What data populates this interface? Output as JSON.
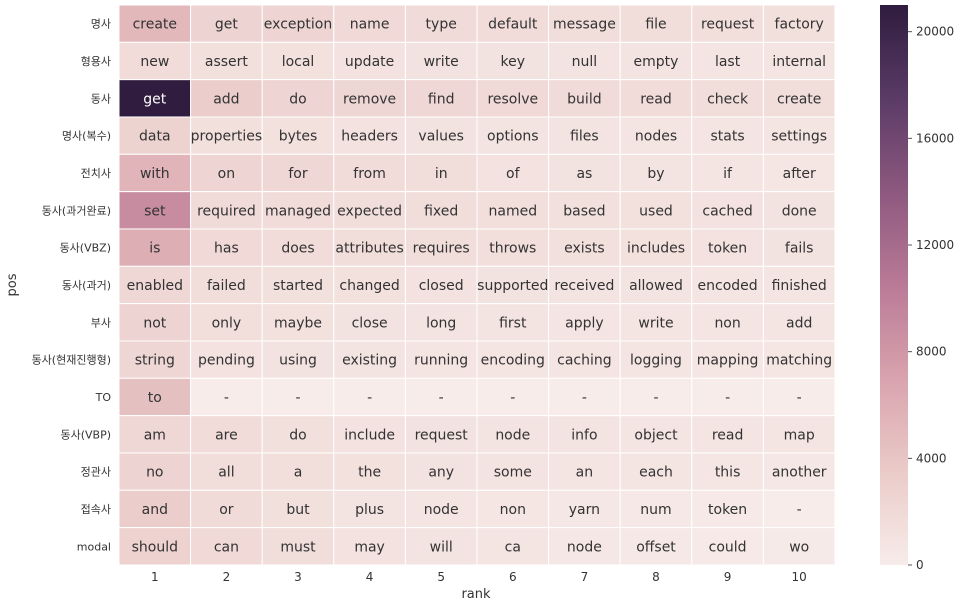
{
  "chart_data": {
    "type": "heatmap",
    "xlabel": "rank",
    "ylabel": "pos",
    "x_categories": [
      "1",
      "2",
      "3",
      "4",
      "5",
      "6",
      "7",
      "8",
      "9",
      "10"
    ],
    "y_categories": [
      "명사",
      "형용사",
      "동사",
      "명사(복수)",
      "전치사",
      "동사(과거완료)",
      "동사(VBZ)",
      "동사(과거)",
      "부사",
      "동사(현재진행형)",
      "TO",
      "동사(VBP)",
      "정관사",
      "접속사",
      "modal"
    ],
    "cell_labels": [
      [
        "create",
        "get",
        "exception",
        "name",
        "type",
        "default",
        "message",
        "file",
        "request",
        "factory"
      ],
      [
        "new",
        "assert",
        "local",
        "update",
        "write",
        "key",
        "null",
        "empty",
        "last",
        "internal"
      ],
      [
        "get",
        "add",
        "do",
        "remove",
        "find",
        "resolve",
        "build",
        "read",
        "check",
        "create"
      ],
      [
        "data",
        "properties",
        "bytes",
        "headers",
        "values",
        "options",
        "files",
        "nodes",
        "stats",
        "settings"
      ],
      [
        "with",
        "on",
        "for",
        "from",
        "in",
        "of",
        "as",
        "by",
        "if",
        "after"
      ],
      [
        "set",
        "required",
        "managed",
        "expected",
        "fixed",
        "named",
        "based",
        "used",
        "cached",
        "done"
      ],
      [
        "is",
        "has",
        "does",
        "attributes",
        "requires",
        "throws",
        "exists",
        "includes",
        "token",
        "fails"
      ],
      [
        "enabled",
        "failed",
        "started",
        "changed",
        "closed",
        "supported",
        "received",
        "allowed",
        "encoded",
        "finished"
      ],
      [
        "not",
        "only",
        "maybe",
        "close",
        "long",
        "first",
        "apply",
        "write",
        "non",
        "add"
      ],
      [
        "string",
        "pending",
        "using",
        "existing",
        "running",
        "encoding",
        "caching",
        "logging",
        "mapping",
        "matching"
      ],
      [
        "to",
        "-",
        "-",
        "-",
        "-",
        "-",
        "-",
        "-",
        "-",
        "-"
      ],
      [
        "am",
        "are",
        "do",
        "include",
        "request",
        "node",
        "info",
        "object",
        "read",
        "map"
      ],
      [
        "no",
        "all",
        "a",
        "the",
        "any",
        "some",
        "an",
        "each",
        "this",
        "another"
      ],
      [
        "and",
        "or",
        "but",
        "plus",
        "node",
        "non",
        "yarn",
        "num",
        "token",
        "-"
      ],
      [
        "should",
        "can",
        "must",
        "may",
        "will",
        "ca",
        "node",
        "offset",
        "could",
        "wo"
      ]
    ],
    "values": [
      [
        5200,
        2600,
        2400,
        2000,
        1800,
        1700,
        1600,
        1500,
        1400,
        1300
      ],
      [
        1700,
        1300,
        1200,
        1100,
        1000,
        1000,
        950,
        900,
        850,
        800
      ],
      [
        21000,
        3200,
        2500,
        2300,
        2200,
        2000,
        1800,
        1700,
        1600,
        1500
      ],
      [
        2700,
        1300,
        1200,
        1100,
        1000,
        950,
        900,
        850,
        800,
        750
      ],
      [
        5500,
        2400,
        2200,
        1700,
        1500,
        1100,
        1000,
        900,
        700,
        600
      ],
      [
        9000,
        1800,
        1700,
        1600,
        1500,
        1400,
        1300,
        1200,
        1100,
        1000
      ],
      [
        6000,
        2000,
        1700,
        1600,
        1500,
        1400,
        1300,
        1200,
        1100,
        1000
      ],
      [
        2200,
        1500,
        1300,
        1200,
        1100,
        1000,
        950,
        900,
        850,
        800
      ],
      [
        2600,
        1400,
        1200,
        1000,
        950,
        900,
        850,
        800,
        750,
        700
      ],
      [
        2300,
        1100,
        1000,
        900,
        850,
        800,
        750,
        700,
        650,
        600
      ],
      [
        4500,
        0,
        0,
        0,
        0,
        0,
        0,
        0,
        0,
        0
      ],
      [
        2200,
        1700,
        1300,
        1100,
        1000,
        950,
        900,
        850,
        800,
        750
      ],
      [
        2600,
        1600,
        1400,
        1200,
        1000,
        900,
        800,
        700,
        600,
        500
      ],
      [
        3200,
        1800,
        1300,
        900,
        700,
        600,
        500,
        400,
        300,
        0
      ],
      [
        2800,
        2000,
        1500,
        1100,
        900,
        700,
        500,
        400,
        300,
        200
      ]
    ],
    "colorbar": {
      "min": 0,
      "max": 21000,
      "ticks": [
        0,
        4000,
        8000,
        12000,
        16000,
        20000
      ],
      "colors": [
        "#f7ecea",
        "#eacbc8",
        "#d9a3ae",
        "#b97a96",
        "#8d587f",
        "#5a3b66",
        "#2f1c3e"
      ]
    },
    "grid": false
  }
}
